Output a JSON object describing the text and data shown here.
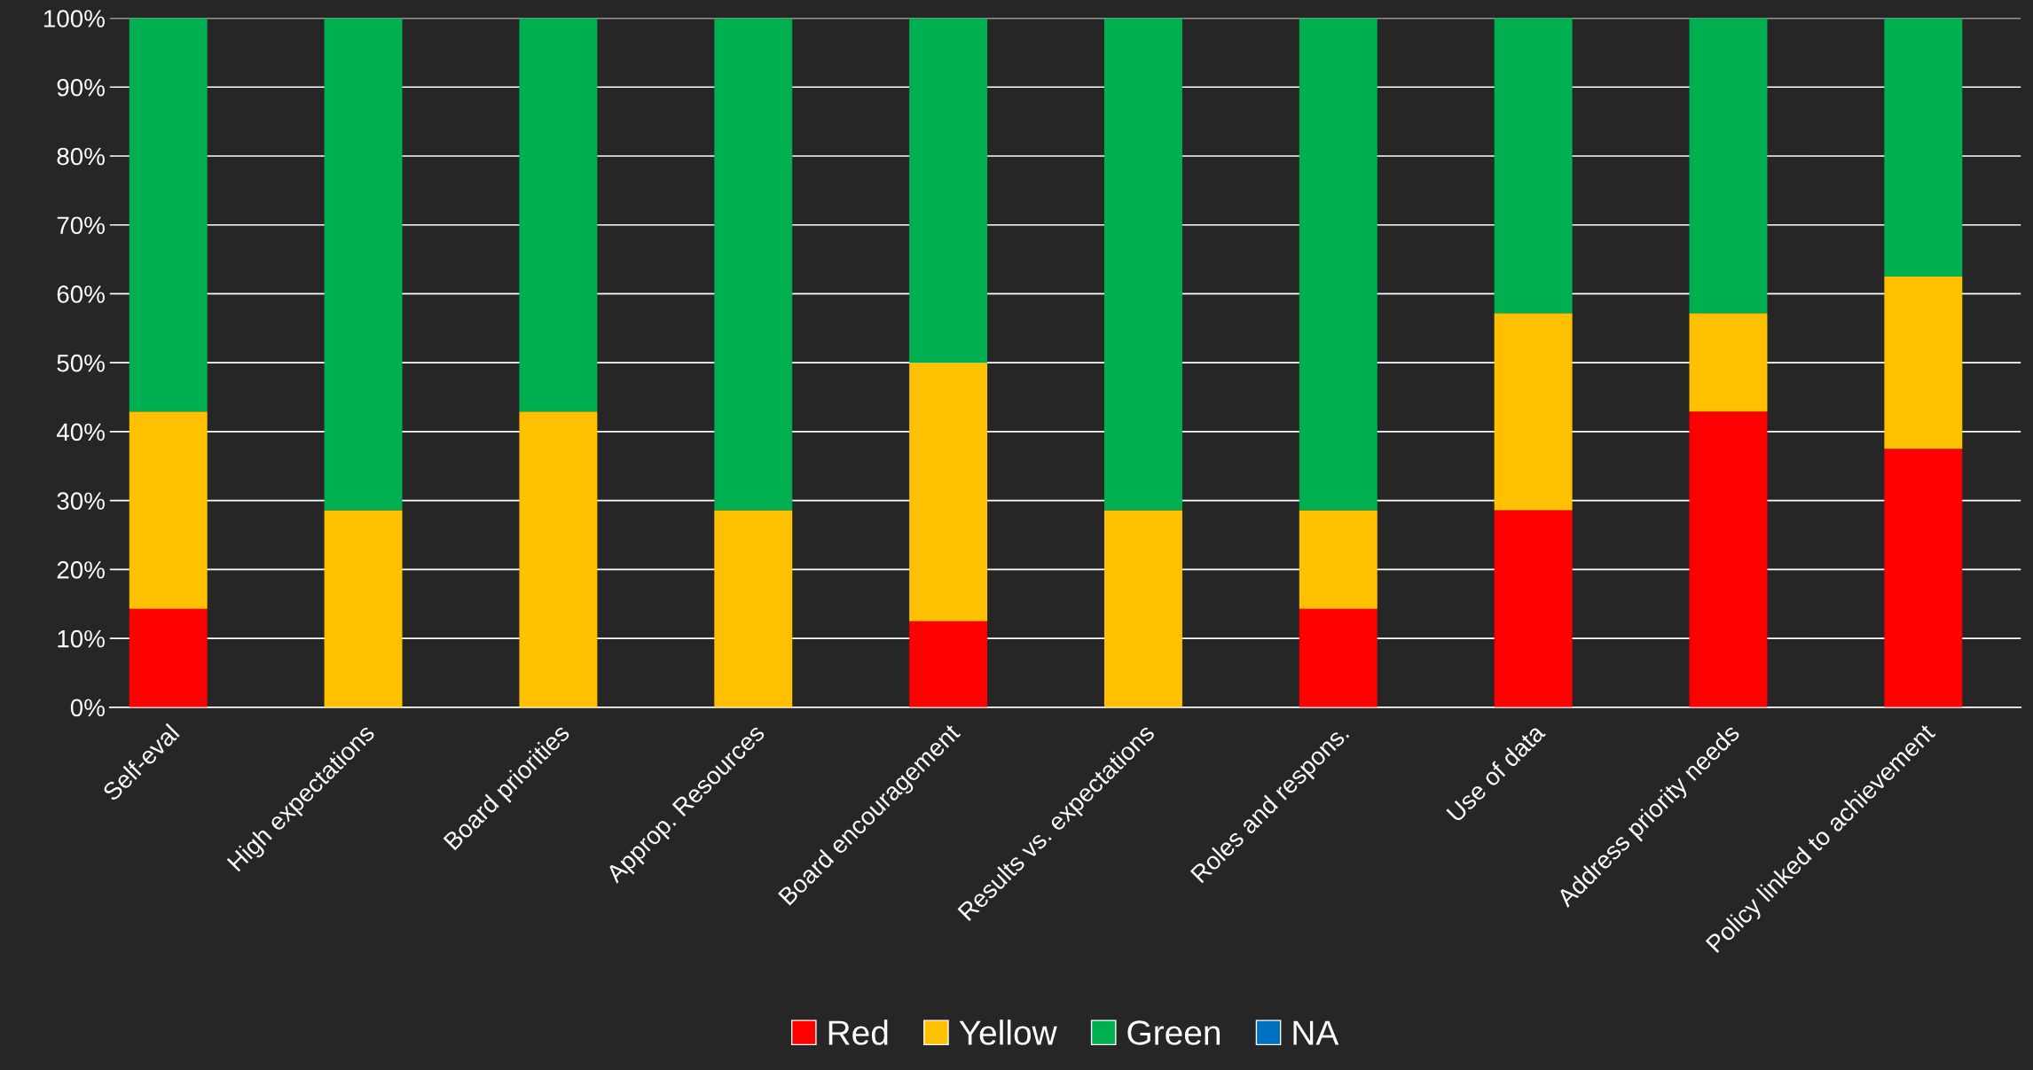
{
  "chart_data": {
    "type": "bar",
    "stacked": true,
    "categories": [
      "Self-eval",
      "High expectations",
      "Board priorities",
      "Approp. Resources",
      "Board encouragement",
      "Results vs. expectations",
      "Roles and respons.",
      "Use of data",
      "Address priority needs",
      "Policy linked to achievement"
    ],
    "series": [
      {
        "name": "Red",
        "color": "#ff0000",
        "values": [
          14.3,
          0,
          0,
          0,
          12.5,
          0,
          14.3,
          28.6,
          42.9,
          37.5
        ]
      },
      {
        "name": "Yellow",
        "color": "#ffc000",
        "values": [
          28.6,
          28.6,
          42.9,
          28.6,
          37.5,
          28.6,
          14.3,
          28.6,
          14.3,
          25
        ]
      },
      {
        "name": "Green",
        "color": "#00b050",
        "values": [
          57.1,
          71.4,
          57.1,
          71.4,
          50,
          71.4,
          71.4,
          42.9,
          42.9,
          37.5
        ]
      },
      {
        "name": "NA",
        "color": "#0070c0",
        "values": [
          0,
          0,
          0,
          0,
          0,
          0,
          0,
          0,
          0,
          0
        ]
      }
    ],
    "ylim": [
      0,
      100
    ],
    "yticks": [
      {
        "value": 0,
        "label": "0%"
      },
      {
        "value": 10,
        "label": "10%"
      },
      {
        "value": 20,
        "label": "20%"
      },
      {
        "value": 30,
        "label": "30%"
      },
      {
        "value": 40,
        "label": "40%"
      },
      {
        "value": 50,
        "label": "50%"
      },
      {
        "value": 60,
        "label": "60%"
      },
      {
        "value": 70,
        "label": "70%"
      },
      {
        "value": 80,
        "label": "80%"
      },
      {
        "value": 90,
        "label": "90%"
      },
      {
        "value": 100,
        "label": "100%"
      }
    ],
    "grid": "y",
    "legend": "bottom"
  }
}
